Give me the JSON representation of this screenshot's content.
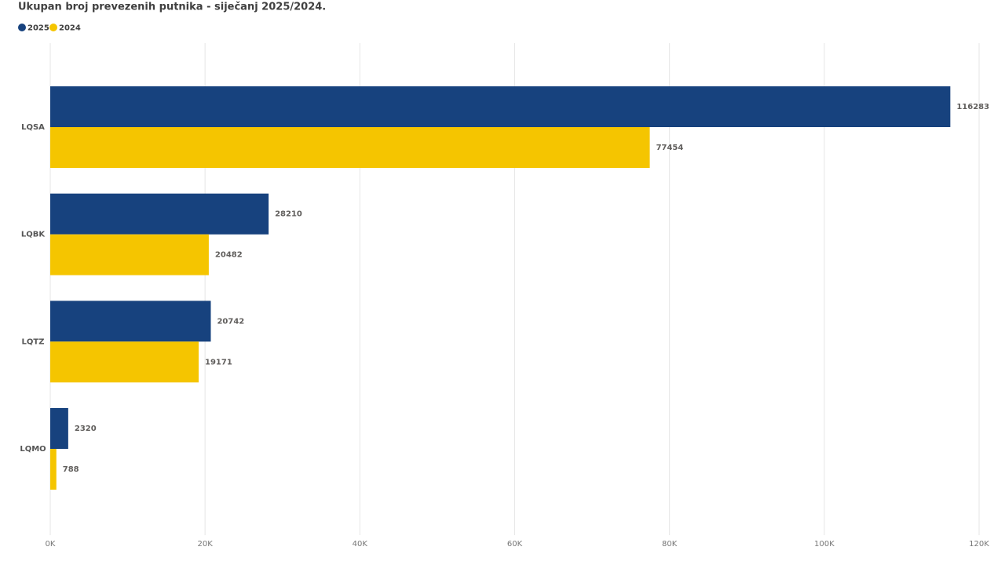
{
  "chart_data": {
    "type": "hbar",
    "title": "Ukupan broj prevezenih putnika - siječanj 2025/2024.",
    "categories": [
      "LQSA",
      "LQBK",
      "LQTZ",
      "LQMO"
    ],
    "series": [
      {
        "name": "2025",
        "color": "#17427e",
        "values": [
          116283,
          28210,
          20742,
          2320
        ]
      },
      {
        "name": "2024",
        "color": "#f5c500",
        "values": [
          77454,
          20482,
          19171,
          788
        ]
      }
    ],
    "xlim": [
      0,
      120000
    ],
    "xticks": [
      {
        "value": 0,
        "label": "0K"
      },
      {
        "value": 20000,
        "label": "20K"
      },
      {
        "value": 40000,
        "label": "40K"
      },
      {
        "value": 60000,
        "label": "60K"
      },
      {
        "value": 80000,
        "label": "80K"
      },
      {
        "value": 100000,
        "label": "100K"
      },
      {
        "value": 120000,
        "label": "120K"
      }
    ],
    "grid": true,
    "legend": "top-left"
  }
}
